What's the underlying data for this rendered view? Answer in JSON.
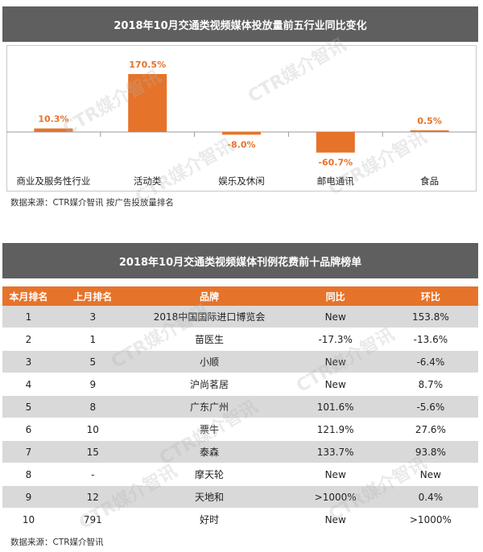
{
  "chart_title": "2018年10月交通类视频媒体投放量前五行业同比变化",
  "chart_data": {
    "type": "bar",
    "categories": [
      "商业及服务性行业",
      "活动类",
      "娱乐及休闲",
      "邮电通讯",
      "食品"
    ],
    "values": [
      10.3,
      170.5,
      -8.0,
      -60.7,
      0.5
    ],
    "value_labels": [
      "10.3%",
      "170.5%",
      "-8.0%",
      "-60.7%",
      "0.5%"
    ],
    "unit": "%",
    "title": "2018年10月交通类视频媒体投放量前五行业同比变化",
    "xlabel": "",
    "ylabel": "",
    "ylim": [
      -80,
      180
    ],
    "grid": false,
    "bar_color": "#e6732a"
  },
  "chart_source": "数据来源：CTR媒介智讯    按广告投放量排名",
  "table_title": "2018年10月交通类视频媒体刊例花费前十品牌榜单",
  "table": {
    "headers": [
      "本月排名",
      "上月排名",
      "品牌",
      "同比",
      "环比"
    ],
    "rows": [
      [
        "1",
        "3",
        "2018中国国际进口博览会",
        "New",
        "153.8%"
      ],
      [
        "2",
        "1",
        "苗医生",
        "-17.3%",
        "-13.6%"
      ],
      [
        "3",
        "5",
        "小顺",
        "New",
        "-6.4%"
      ],
      [
        "4",
        "9",
        "沪尚茗居",
        "New",
        "8.7%"
      ],
      [
        "5",
        "8",
        "广东广州",
        "101.6%",
        "-5.6%"
      ],
      [
        "6",
        "10",
        "票牛",
        "121.9%",
        "27.6%"
      ],
      [
        "7",
        "15",
        "泰森",
        "133.7%",
        "93.8%"
      ],
      [
        "8",
        "-",
        "摩天轮",
        "New",
        "New"
      ],
      [
        "9",
        "12",
        "天地和",
        ">1000%",
        "0.4%"
      ],
      [
        "10",
        "791",
        "好时",
        "New",
        ">1000%"
      ]
    ]
  },
  "table_source": "数据来源：CTR媒介智讯",
  "watermark_text": "CTR媒介智讯",
  "colors": {
    "title_bar": "#5f5f5f",
    "header": "#e6732a",
    "row_alt": "#d9d9d9"
  }
}
